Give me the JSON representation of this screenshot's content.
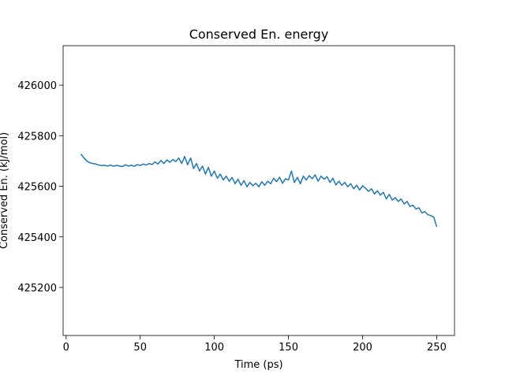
{
  "chart_data": {
    "type": "line",
    "title": "Conserved En. energy",
    "xlabel": "Time (ps)",
    "ylabel": "Conserved En. (kJ/mol)",
    "x": [
      10,
      12,
      14,
      16,
      18,
      20,
      22,
      24,
      26,
      28,
      30,
      32,
      34,
      36,
      38,
      40,
      42,
      44,
      46,
      48,
      50,
      52,
      54,
      56,
      58,
      60,
      62,
      64,
      66,
      68,
      70,
      72,
      74,
      76,
      78,
      80,
      82,
      84,
      86,
      88,
      90,
      92,
      94,
      96,
      98,
      100,
      102,
      104,
      106,
      108,
      110,
      112,
      114,
      116,
      118,
      120,
      122,
      124,
      126,
      128,
      130,
      132,
      134,
      136,
      138,
      140,
      142,
      144,
      146,
      148,
      150,
      152,
      154,
      156,
      158,
      160,
      162,
      164,
      166,
      168,
      170,
      172,
      174,
      176,
      178,
      180,
      182,
      184,
      186,
      188,
      190,
      192,
      194,
      196,
      198,
      200,
      202,
      204,
      206,
      208,
      210,
      212,
      214,
      216,
      218,
      220,
      222,
      224,
      226,
      228,
      230,
      232,
      234,
      236,
      238,
      240,
      242,
      244,
      246,
      248,
      250
    ],
    "values": [
      425728,
      425712,
      425700,
      425693,
      425690,
      425688,
      425684,
      425682,
      425683,
      425680,
      425684,
      425679,
      425683,
      425680,
      425678,
      425685,
      425680,
      425683,
      425679,
      425686,
      425682,
      425688,
      425684,
      425690,
      425686,
      425696,
      425688,
      425702,
      425690,
      425704,
      425695,
      425706,
      425698,
      425712,
      425690,
      425718,
      425685,
      425712,
      425670,
      425690,
      425660,
      425680,
      425648,
      425675,
      425640,
      425660,
      425632,
      425648,
      425625,
      425640,
      425620,
      425635,
      425610,
      425628,
      425604,
      425622,
      425598,
      425615,
      425602,
      425612,
      425598,
      425618,
      425604,
      425620,
      425610,
      425632,
      425618,
      425636,
      425612,
      425630,
      425625,
      425660,
      425615,
      425635,
      425610,
      425640,
      425625,
      425642,
      425630,
      425645,
      425620,
      425640,
      425628,
      425638,
      425615,
      425632,
      425605,
      425620,
      425604,
      425615,
      425598,
      425610,
      425590,
      425604,
      425585,
      425602,
      425592,
      425580,
      425590,
      425570,
      425582,
      425565,
      425576,
      425550,
      425568,
      425545,
      425555,
      425540,
      425550,
      425530,
      425540,
      425520,
      425525,
      425510,
      425515,
      425495,
      425500,
      425488,
      425484,
      425478,
      425440
    ],
    "color": "#1f77b4",
    "xlim": [
      -2,
      262
    ],
    "ylim": [
      425010,
      426156
    ],
    "xticks": [
      0,
      50,
      100,
      150,
      200,
      250
    ],
    "yticks": [
      425200,
      425400,
      425600,
      425800,
      426000
    ],
    "grid": false
  }
}
